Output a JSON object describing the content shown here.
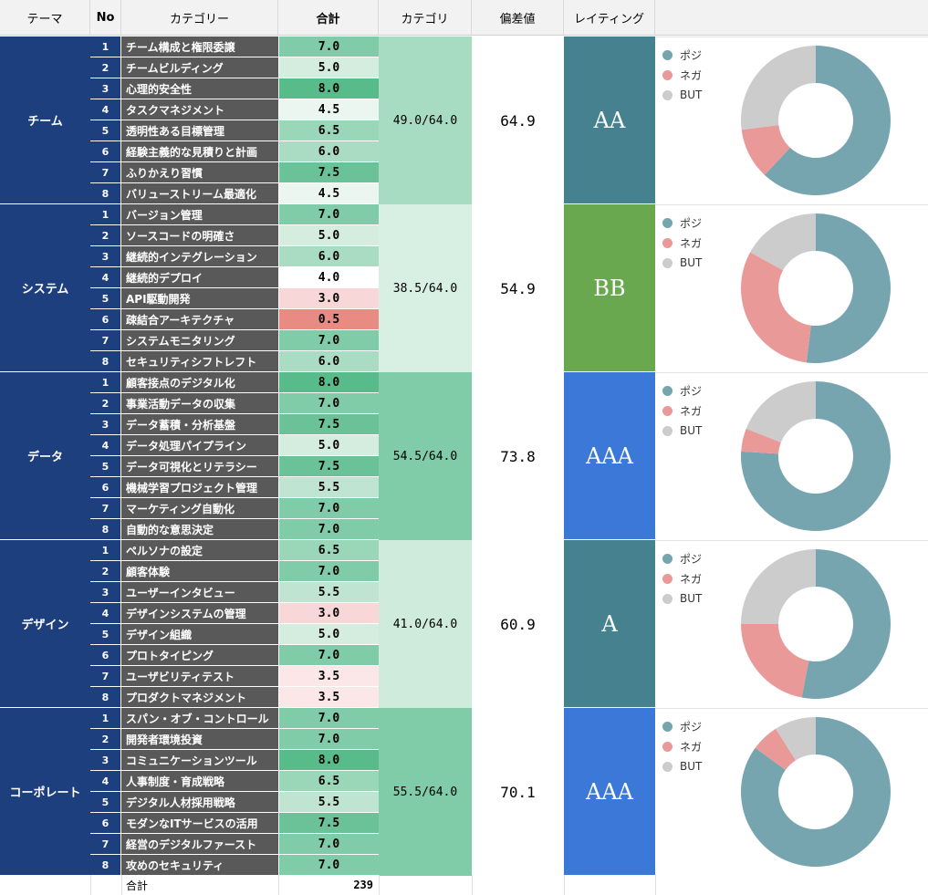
{
  "headers": {
    "theme": "テーマ",
    "no": "No",
    "category": "カテゴリー",
    "total": "合計",
    "category_sum": "カテゴリ",
    "deviation": "偏差値",
    "rating": "レイティング"
  },
  "legend_labels": [
    "ポジ",
    "ネガ",
    "BUT"
  ],
  "colors": {
    "positive": "#76a5af",
    "negative": "#ea9999",
    "but": "#cccccc",
    "theme_bg": "#1d3f7d",
    "category_bg": "#595959"
  },
  "groups": [
    {
      "theme": "チーム",
      "sum": "49.0/64.0",
      "deviation": "64.9",
      "rating": "AA",
      "rating_color": "#45818e",
      "sum_color": "#a8dcc2",
      "rows": [
        {
          "no": "1",
          "category": "チーム構成と権限委譲",
          "score": "7.0",
          "color": "#80cba8"
        },
        {
          "no": "2",
          "category": "チームビルディング",
          "score": "5.0",
          "color": "#d4eddf"
        },
        {
          "no": "3",
          "category": "心理的安全性",
          "score": "8.0",
          "color": "#57bb8a"
        },
        {
          "no": "4",
          "category": "タスクマネジメント",
          "score": "4.5",
          "color": "#eaf6ef"
        },
        {
          "no": "5",
          "category": "透明性ある目標管理",
          "score": "6.5",
          "color": "#9ad6b8"
        },
        {
          "no": "6",
          "category": "経験主義的な見積りと計画",
          "score": "6.0",
          "color": "#aadcc3"
        },
        {
          "no": "7",
          "category": "ふりかえり習慣",
          "score": "7.5",
          "color": "#6bc298"
        },
        {
          "no": "8",
          "category": "バリューストリーム最適化",
          "score": "4.5",
          "color": "#eaf6ef"
        }
      ],
      "pie": {
        "positive": 62,
        "negative": 11,
        "but": 27
      }
    },
    {
      "theme": "システム",
      "sum": "38.5/64.0",
      "deviation": "54.9",
      "rating": "BB",
      "rating_color": "#6aa84f",
      "sum_color": "#d8efe3",
      "rows": [
        {
          "no": "1",
          "category": "バージョン管理",
          "score": "7.0",
          "color": "#80cba8"
        },
        {
          "no": "2",
          "category": "ソースコードの明確さ",
          "score": "5.0",
          "color": "#d4eddf"
        },
        {
          "no": "3",
          "category": "継続的インテグレーション",
          "score": "6.0",
          "color": "#aadcc3"
        },
        {
          "no": "4",
          "category": "継続的デプロイ",
          "score": "4.0",
          "color": "#ffffff"
        },
        {
          "no": "5",
          "category": "API駆動開発",
          "score": "3.0",
          "color": "#f8d7d8"
        },
        {
          "no": "6",
          "category": "疎結合アーキテクチャ",
          "score": "0.5",
          "color": "#e88b83"
        },
        {
          "no": "7",
          "category": "システムモニタリング",
          "score": "7.0",
          "color": "#80cba8"
        },
        {
          "no": "8",
          "category": "セキュリティシフトレフト",
          "score": "6.0",
          "color": "#aadcc3"
        }
      ],
      "pie": {
        "positive": 52,
        "negative": 31,
        "but": 17
      }
    },
    {
      "theme": "データ",
      "sum": "54.5/64.0",
      "deviation": "73.8",
      "rating": "AAA",
      "rating_color": "#3c78d8",
      "sum_color": "#80cba8",
      "rows": [
        {
          "no": "1",
          "category": "顧客接点のデジタル化",
          "score": "8.0",
          "color": "#57bb8a"
        },
        {
          "no": "2",
          "category": "事業活動データの収集",
          "score": "7.0",
          "color": "#80cba8"
        },
        {
          "no": "3",
          "category": "データ蓄積・分析基盤",
          "score": "7.5",
          "color": "#6bc298"
        },
        {
          "no": "4",
          "category": "データ処理パイプライン",
          "score": "5.0",
          "color": "#d4eddf"
        },
        {
          "no": "5",
          "category": "データ可視化とリテラシー",
          "score": "7.5",
          "color": "#6bc298"
        },
        {
          "no": "6",
          "category": "機械学習プロジェクト管理",
          "score": "5.5",
          "color": "#bfe4d1"
        },
        {
          "no": "7",
          "category": "マーケティング自動化",
          "score": "7.0",
          "color": "#80cba8"
        },
        {
          "no": "8",
          "category": "自動的な意思決定",
          "score": "7.0",
          "color": "#80cba8"
        }
      ],
      "pie": {
        "positive": 76,
        "negative": 5,
        "but": 19
      }
    },
    {
      "theme": "デザイン",
      "sum": "41.0/64.0",
      "deviation": "60.9",
      "rating": "A",
      "rating_color": "#45818e",
      "sum_color": "#cfebdc",
      "rows": [
        {
          "no": "1",
          "category": "ペルソナの設定",
          "score": "6.5",
          "color": "#9ad6b8"
        },
        {
          "no": "2",
          "category": "顧客体験",
          "score": "7.0",
          "color": "#80cba8"
        },
        {
          "no": "3",
          "category": "ユーザーインタビュー",
          "score": "5.5",
          "color": "#bfe4d1"
        },
        {
          "no": "4",
          "category": "デザインシステムの管理",
          "score": "3.0",
          "color": "#f8d7d8"
        },
        {
          "no": "5",
          "category": "デザイン組織",
          "score": "5.0",
          "color": "#d4eddf"
        },
        {
          "no": "6",
          "category": "プロトタイピング",
          "score": "7.0",
          "color": "#80cba8"
        },
        {
          "no": "7",
          "category": "ユーザビリティテスト",
          "score": "3.5",
          "color": "#fbe7e8"
        },
        {
          "no": "8",
          "category": "プロダクトマネジメント",
          "score": "3.5",
          "color": "#fbe7e8"
        }
      ],
      "pie": {
        "positive": 53,
        "negative": 22,
        "but": 25
      }
    },
    {
      "theme": "コーポレート",
      "sum": "55.5/64.0",
      "deviation": "70.1",
      "rating": "AAA",
      "rating_color": "#3c78d8",
      "sum_color": "#80cba8",
      "rows": [
        {
          "no": "1",
          "category": "スパン・オブ・コントロール",
          "score": "7.0",
          "color": "#80cba8"
        },
        {
          "no": "2",
          "category": "開発者環境投資",
          "score": "7.0",
          "color": "#80cba8"
        },
        {
          "no": "3",
          "category": "コミュニケーションツール",
          "score": "8.0",
          "color": "#57bb8a"
        },
        {
          "no": "4",
          "category": "人事制度・育成戦略",
          "score": "6.5",
          "color": "#9ad6b8"
        },
        {
          "no": "5",
          "category": "デジタル人材採用戦略",
          "score": "5.5",
          "color": "#bfe4d1"
        },
        {
          "no": "6",
          "category": "モダンなITサービスの活用",
          "score": "7.5",
          "color": "#6bc298"
        },
        {
          "no": "7",
          "category": "経営のデジタルファースト",
          "score": "7.0",
          "color": "#80cba8"
        },
        {
          "no": "8",
          "category": "攻めのセキュリティ",
          "score": "7.0",
          "color": "#80cba8"
        }
      ],
      "pie": {
        "positive": 85,
        "negative": 6,
        "but": 9
      }
    }
  ],
  "footer": {
    "label": "合計",
    "total": "239"
  }
}
